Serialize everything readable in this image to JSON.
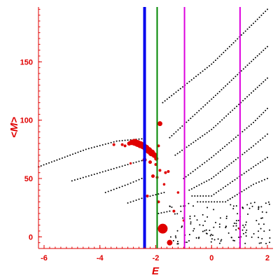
{
  "chart_data": {
    "type": "scatter",
    "title": "",
    "xlabel": "E",
    "ylabel": "<M>",
    "xlim": [
      -6.2,
      2.2
    ],
    "ylim": [
      -10,
      197
    ],
    "xticks": [
      {
        "value": -6,
        "label": "-6"
      },
      {
        "value": -4,
        "label": "-4"
      },
      {
        "value": -2,
        "label": "-2"
      },
      {
        "value": 0,
        "label": "0"
      },
      {
        "value": 2,
        "label": "2"
      }
    ],
    "yticks": [
      {
        "value": 0,
        "label": "0"
      },
      {
        "value": 50,
        "label": "50"
      },
      {
        "value": 100,
        "label": "100"
      },
      {
        "value": 150,
        "label": "150"
      }
    ],
    "grid": false,
    "legend": "none",
    "colors": {
      "axis": "#e00000",
      "points": "#000000",
      "highlight": "#e00000",
      "line_blue": "#0000ee",
      "line_green": "#008800",
      "line_magenta": "#dd00dd"
    },
    "vertical_lines": [
      {
        "x": -2.4,
        "color": "#0000ee",
        "width": 4
      },
      {
        "x": -1.95,
        "color": "#008800",
        "width": 2
      },
      {
        "x": -0.97,
        "color": "#dd00dd",
        "width": 2
      },
      {
        "x": 1.02,
        "color": "#dd00dd",
        "width": 2
      }
    ],
    "series": [
      {
        "values": [
          [
            -6.2,
            60
          ],
          [
            -4.5,
            75
          ],
          [
            -3.4,
            82
          ],
          [
            -2.5,
            84
          ]
        ]
      },
      {
        "values": [
          [
            -5.0,
            48
          ],
          [
            -4.0,
            55
          ],
          [
            -3.0,
            62
          ],
          [
            -2.4,
            66
          ]
        ]
      },
      {
        "values": [
          [
            -3.8,
            38
          ],
          [
            -3.0,
            45
          ],
          [
            -2.5,
            50
          ]
        ]
      },
      {
        "values": [
          [
            -3.0,
            29
          ],
          [
            -2.5,
            33
          ],
          [
            -1.7,
            38
          ]
        ]
      },
      {
        "values": [
          [
            -1.9,
            20
          ],
          [
            -1.5,
            22
          ]
        ]
      },
      {
        "values": [
          [
            -1.75,
            115
          ],
          [
            0.0,
            148
          ],
          [
            1.5,
            183
          ],
          [
            2.0,
            195
          ]
        ]
      },
      {
        "values": [
          [
            -1.5,
            85
          ],
          [
            0.0,
            118
          ],
          [
            1.5,
            152
          ],
          [
            2.0,
            163
          ]
        ]
      },
      {
        "values": [
          [
            -1.3,
            70
          ],
          [
            0.0,
            92
          ],
          [
            1.5,
            125
          ],
          [
            2.0,
            136
          ]
        ]
      },
      {
        "values": [
          [
            -1.0,
            50
          ],
          [
            0.0,
            68
          ],
          [
            1.5,
            98
          ],
          [
            2.0,
            110
          ]
        ]
      },
      {
        "values": [
          [
            -0.8,
            40
          ],
          [
            0.0,
            50
          ],
          [
            1.5,
            78
          ],
          [
            2.0,
            88
          ]
        ]
      },
      {
        "values": [
          [
            -0.7,
            35
          ],
          [
            0.0,
            35
          ],
          [
            1.5,
            60
          ],
          [
            2.0,
            68
          ]
        ]
      },
      {
        "values": [
          [
            -0.5,
            30
          ],
          [
            0.5,
            30
          ],
          [
            1.5,
            45
          ],
          [
            2.0,
            50
          ]
        ]
      }
    ],
    "scatter_region": {
      "xmin": -1.5,
      "xmax": 2.1,
      "ymin": -6,
      "ymax": 30,
      "count": 140,
      "seed": 7
    },
    "highlights": [
      {
        "x": -2.95,
        "y": 80,
        "size": 3
      },
      {
        "x": -2.85,
        "y": 81,
        "size": 4
      },
      {
        "x": -2.75,
        "y": 81,
        "size": 5
      },
      {
        "x": -2.65,
        "y": 80,
        "size": 5
      },
      {
        "x": -2.55,
        "y": 79,
        "size": 5
      },
      {
        "x": -2.45,
        "y": 78,
        "size": 5
      },
      {
        "x": -2.35,
        "y": 76,
        "size": 5
      },
      {
        "x": -2.25,
        "y": 74,
        "size": 5
      },
      {
        "x": -2.15,
        "y": 72,
        "size": 5
      },
      {
        "x": -2.05,
        "y": 70,
        "size": 4
      },
      {
        "x": -1.98,
        "y": 67,
        "size": 3
      },
      {
        "x": -3.5,
        "y": 79,
        "size": 2
      },
      {
        "x": -3.2,
        "y": 79,
        "size": 2
      },
      {
        "x": -3.1,
        "y": 78,
        "size": 2
      },
      {
        "x": -2.4,
        "y": 66,
        "size": 3
      },
      {
        "x": -2.2,
        "y": 64,
        "size": 2.5
      },
      {
        "x": -2.0,
        "y": 62,
        "size": 2
      },
      {
        "x": -1.85,
        "y": 57,
        "size": 2
      },
      {
        "x": -1.65,
        "y": 55,
        "size": 2
      },
      {
        "x": -1.55,
        "y": 56,
        "size": 2
      },
      {
        "x": -2.1,
        "y": 52,
        "size": 2.5
      },
      {
        "x": -1.95,
        "y": 51,
        "size": 2
      },
      {
        "x": -1.7,
        "y": 45,
        "size": 1.8
      },
      {
        "x": -2.3,
        "y": 35,
        "size": 2
      },
      {
        "x": -1.9,
        "y": 30,
        "size": 2
      },
      {
        "x": -1.85,
        "y": 97,
        "size": 3.5
      },
      {
        "x": -1.75,
        "y": 7,
        "size": 7
      },
      {
        "x": -1.5,
        "y": -5,
        "size": 4
      },
      {
        "x": -1.9,
        "y": 78,
        "size": 2
      },
      {
        "x": -1.35,
        "y": 22,
        "size": 2
      },
      {
        "x": -1.0,
        "y": 14,
        "size": 1.6
      },
      {
        "x": -1.2,
        "y": 38,
        "size": 1.8
      },
      {
        "x": 1.0,
        "y": 7,
        "size": 1.6
      },
      {
        "x": -2.9,
        "y": 63,
        "size": 1.6
      }
    ]
  }
}
